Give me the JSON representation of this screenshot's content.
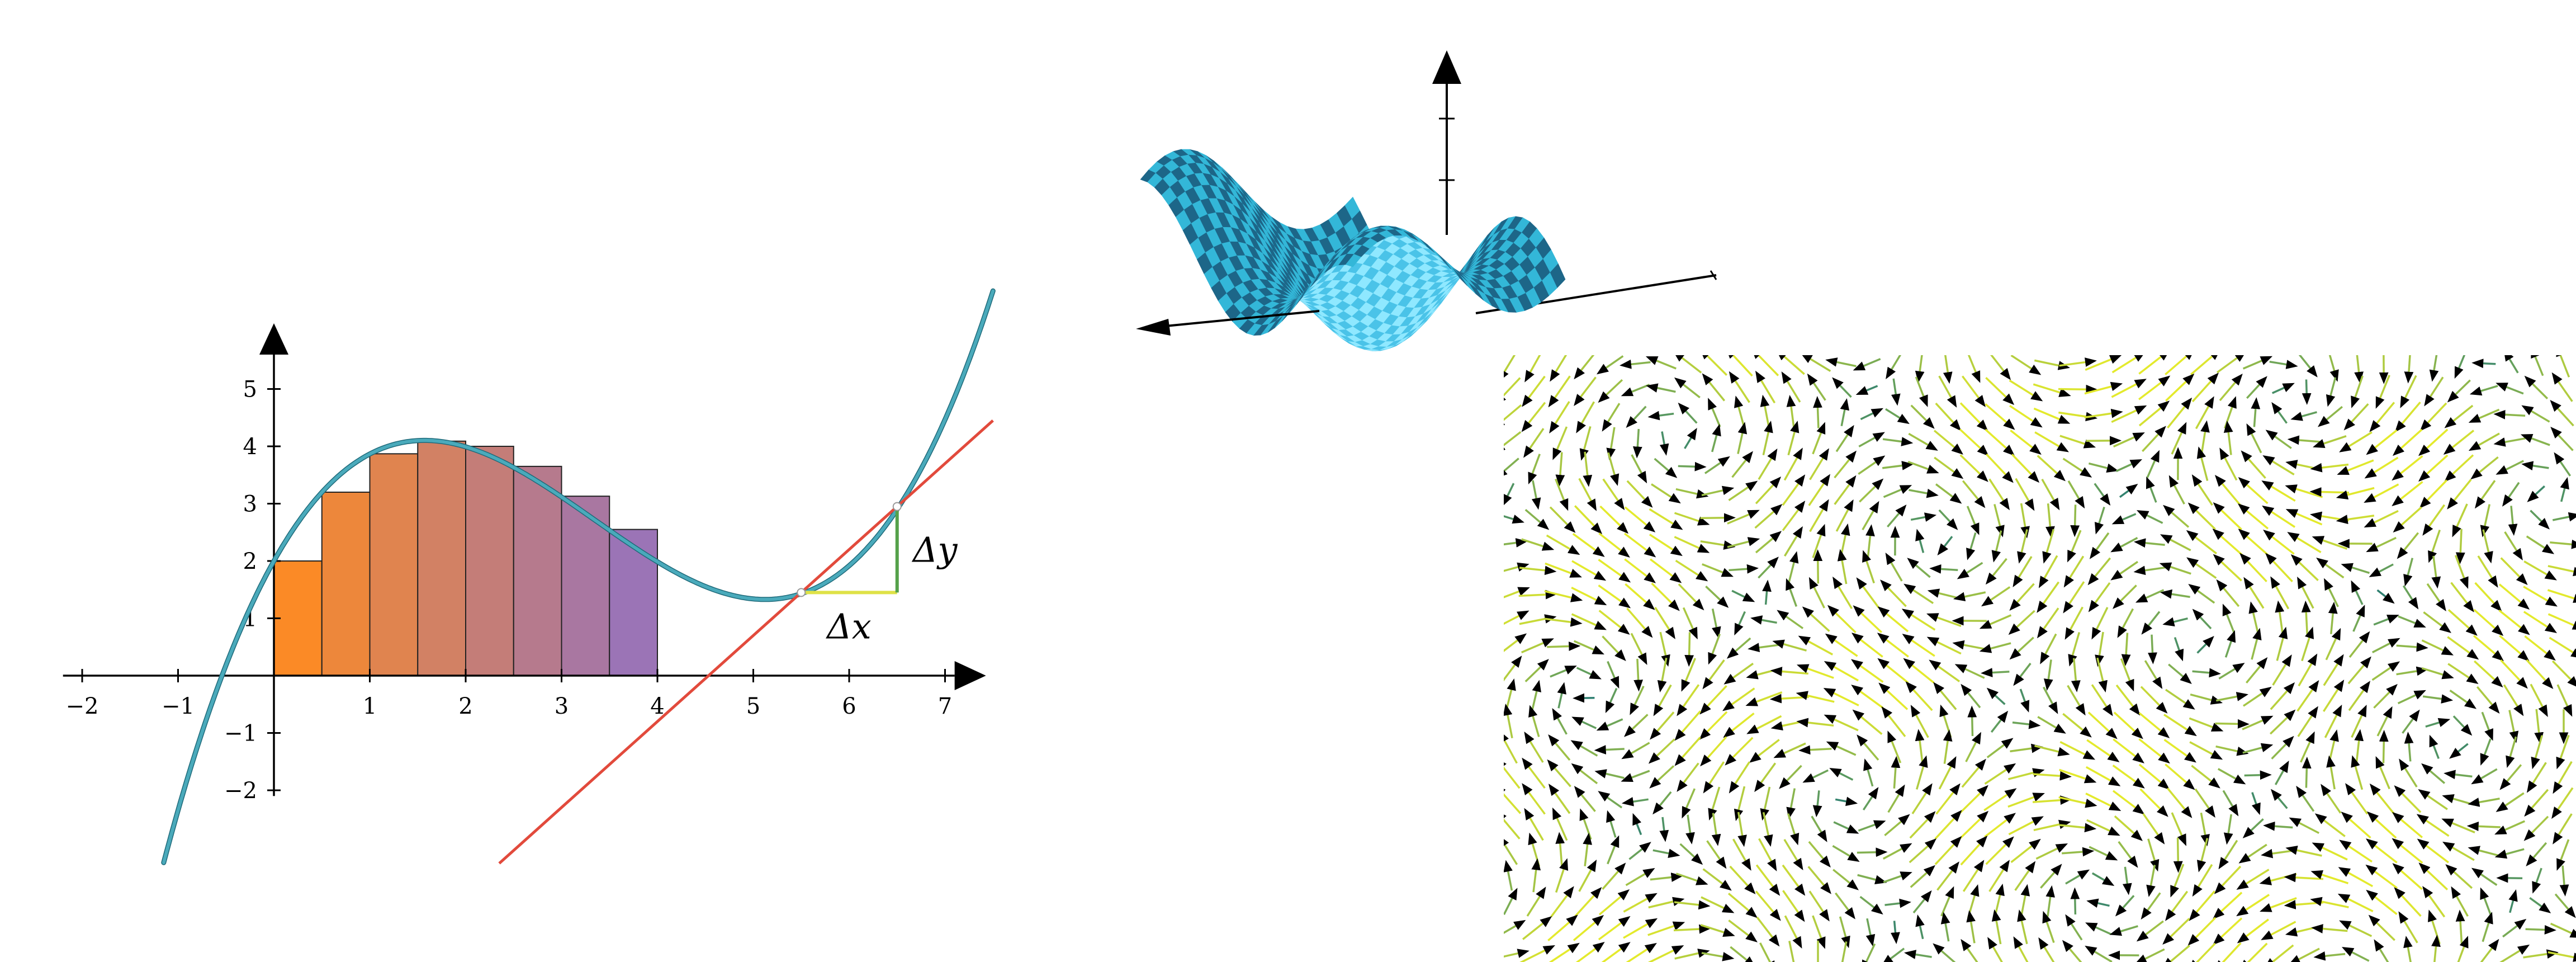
{
  "colors": {
    "curve": "#4aaabb",
    "curve_outline": "#1f6a7a",
    "tangent": "#e24a3c",
    "delta_x": "#dfe247",
    "delta_y": "#55a14a",
    "axis": "#000000",
    "rect_start": "#fb8a26",
    "rect_end": "#9b74b6",
    "surface_light": "#33b7d8",
    "surface_dark": "#1d6688",
    "surface_underside_light": "#8fe8ff",
    "surface_underside_dark": "#4ac3e8",
    "vector_yellow": "#e4ea2c",
    "vector_teal": "#2a7d72"
  },
  "chart_data": {
    "type": "line",
    "title": "",
    "xlabel": "",
    "ylabel": "",
    "xlim": [
      -2,
      7
    ],
    "ylim": [
      -2,
      5
    ],
    "x_ticks": [
      "−2",
      "−1",
      "1",
      "2",
      "3",
      "4",
      "5",
      "6",
      "7"
    ],
    "x_tick_values": [
      -2,
      -1,
      1,
      2,
      3,
      4,
      5,
      6,
      7
    ],
    "y_ticks": [
      "−2",
      "−1",
      "1",
      "2",
      "3",
      "4",
      "5"
    ],
    "y_tick_values": [
      -2,
      -1,
      1,
      2,
      3,
      4,
      5
    ],
    "curve": {
      "type": "cubic",
      "x_range": [
        -1.15,
        7.5
      ],
      "points": [
        [
          0,
          2
        ],
        [
          1.5,
          4.1
        ],
        [
          5.3,
          1.35
        ],
        [
          6.5,
          2.9
        ]
      ]
    },
    "riemann_rectangles": {
      "x_start": 0,
      "width": 0.5,
      "heights": [
        2.0,
        3.2,
        3.87,
        4.09,
        4.0,
        3.65,
        3.13,
        2.55
      ]
    },
    "tangent_line": {
      "point_x": 5.5,
      "point_y": 1.45,
      "slope": 1.5,
      "x_range": [
        2.35,
        7.5
      ]
    },
    "secant": {
      "x1": 5.5,
      "y1": 1.45,
      "x2": 6.5,
      "y2": 2.95
    },
    "annotations": {
      "delta_x": "Δx",
      "delta_y": "Δy"
    }
  }
}
